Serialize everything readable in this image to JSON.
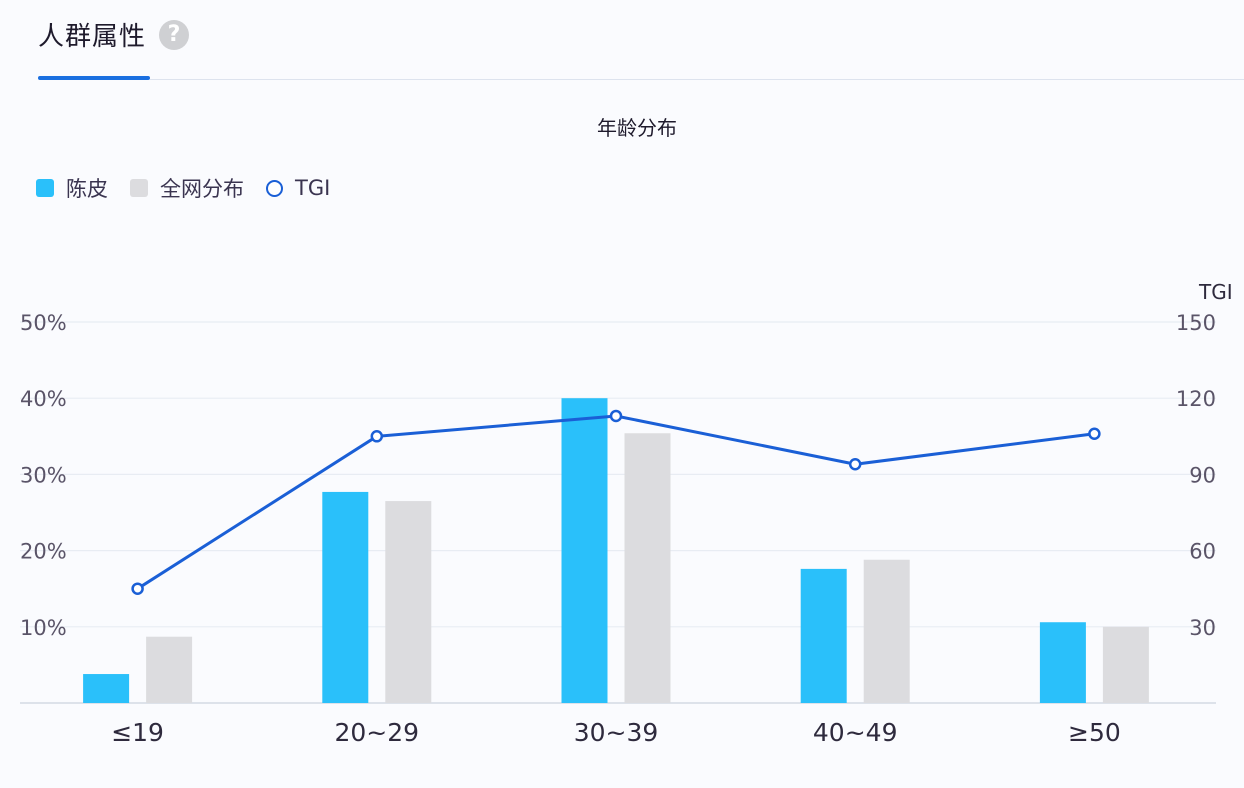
{
  "tab": {
    "title": "人群属性",
    "help_icon": "question-circle-icon",
    "active_color": "#1a6fe0"
  },
  "chart_data": {
    "type": "bar",
    "title": "年龄分布",
    "categories": [
      "≤19",
      "20~29",
      "30~39",
      "40~49",
      "≥50"
    ],
    "series": [
      {
        "name": "陈皮",
        "type": "bar",
        "axis": "left",
        "color": "#2ac0fa",
        "values": [
          3.8,
          27.7,
          40.0,
          17.6,
          10.6
        ]
      },
      {
        "name": "全网分布",
        "type": "bar",
        "axis": "left",
        "color": "#dcdcdf",
        "values": [
          8.7,
          26.5,
          35.4,
          18.8,
          10.0
        ]
      },
      {
        "name": "TGI",
        "type": "line",
        "axis": "right",
        "color": "#1a5fd6",
        "values": [
          45,
          105,
          113,
          94,
          106
        ]
      }
    ],
    "xlabel": "",
    "ylabel": "",
    "ylim": [
      0,
      50
    ],
    "y_ticks": [
      "10%",
      "20%",
      "30%",
      "40%",
      "50%"
    ],
    "y2label": "TGI",
    "y2lim": [
      0,
      150
    ],
    "y2_ticks": [
      "30",
      "60",
      "90",
      "120",
      "150"
    ],
    "grid": true,
    "legend_position": "top-left"
  },
  "legend": [
    {
      "label": "陈皮",
      "color": "#2ac0fa",
      "shape": "square"
    },
    {
      "label": "全网分布",
      "color": "#dcdcdf",
      "shape": "square"
    },
    {
      "label": "TGI",
      "color": "#1a5fd6",
      "shape": "circle"
    }
  ]
}
